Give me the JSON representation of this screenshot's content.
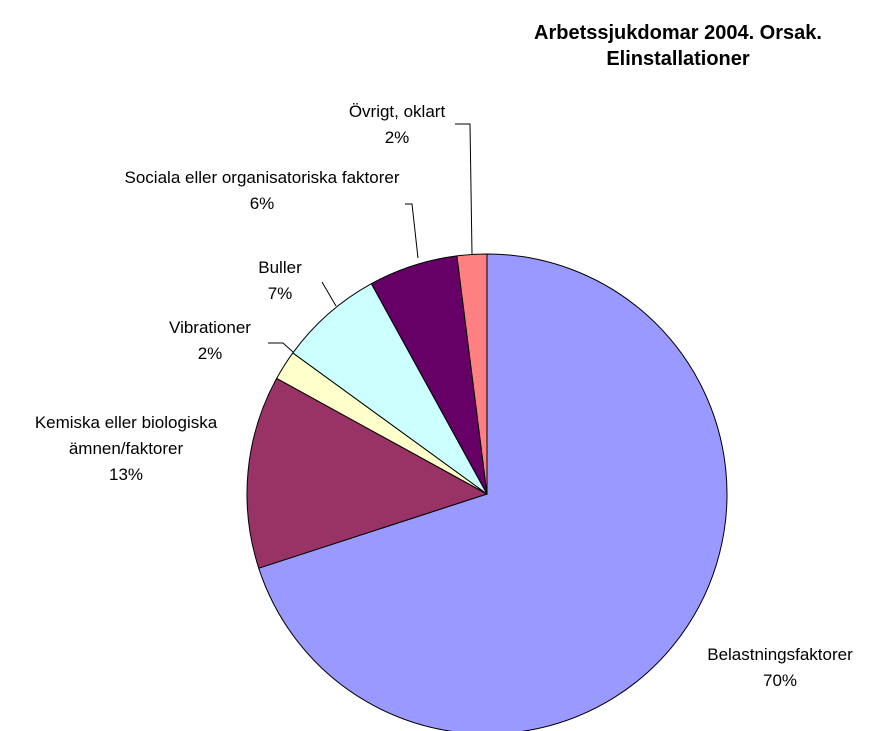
{
  "chart_data": {
    "type": "pie",
    "title": "Arbetssjukdomar 2004. Orsak. Elinstallationer",
    "categories": [
      "Belastningsfaktorer",
      "Kemiska eller biologiska ämnen/faktorer",
      "Vibrationer",
      "Buller",
      "Sociala eller organisatoriska faktorer",
      "Övrigt, oklart"
    ],
    "values": [
      70,
      13,
      2,
      7,
      6,
      2
    ],
    "value_labels": [
      "70%",
      "13%",
      "2%",
      "7%",
      "6%",
      "2%"
    ],
    "colors": [
      "#9999ff",
      "#993366",
      "#ffffcc",
      "#ccffff",
      "#660066",
      "#ff8080"
    ]
  }
}
